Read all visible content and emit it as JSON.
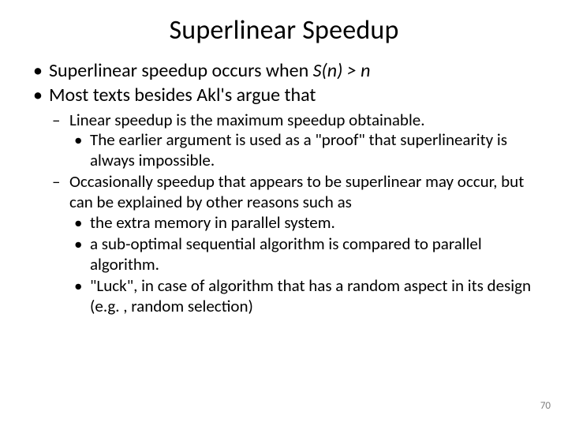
{
  "title": "Superlinear Speedup",
  "bullets": {
    "b1_pre": "Superlinear speedup occurs when ",
    "b1_math": "S(n) > n",
    "b2": "Most texts besides Akl's argue that",
    "s1": "Linear speedup is the maximum speedup obtainable.",
    "s1a": "The earlier argument is used as a \"proof\" that superlinearity is always impossible.",
    "s2": "Occasionally speedup that appears to be superlinear may occur, but can be explained by other reasons such as",
    "s2a": "the extra memory in parallel system.",
    "s2b": "a sub-optimal sequential algorithm is compared to parallel algorithm.",
    "s2c": "\"Luck\", in case of algorithm that has a random aspect in its design (e.g. , random selection)"
  },
  "page_number": "70",
  "style": {
    "background_color": "#ffffff",
    "text_color": "#000000",
    "pagenum_color": "#7f7f7f",
    "title_fontsize": 34,
    "l1_fontsize": 24,
    "l2_fontsize": 21,
    "l3_fontsize": 21,
    "font_family": "Calibri"
  }
}
